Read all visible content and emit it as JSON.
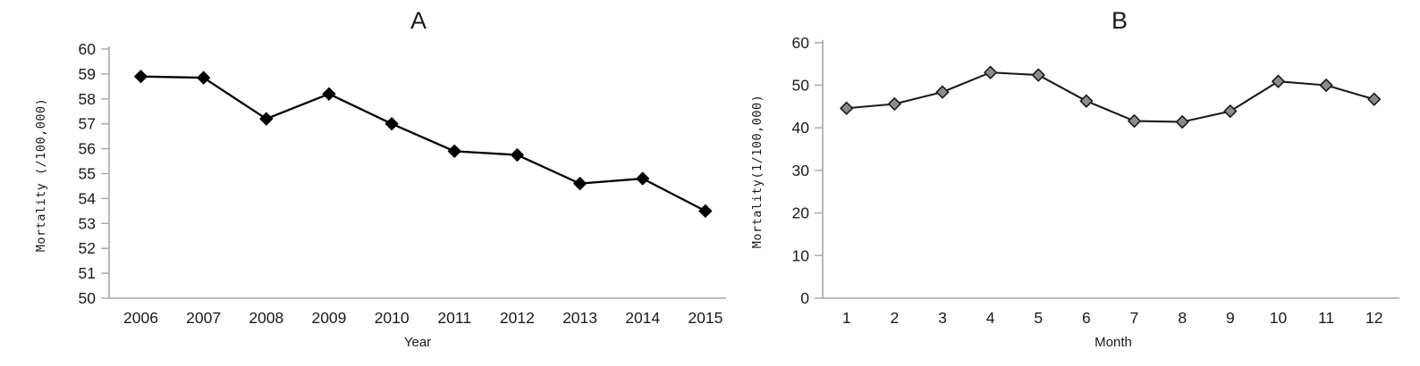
{
  "page": {
    "background": "#ffffff",
    "description": "Two panel line chart figure"
  },
  "colors": {
    "axis_line": "#a6a6a6",
    "text": "#1a1a1a",
    "series_a_line": "#000000",
    "series_a_marker_fill": "#000000",
    "series_b_line": "#1a1a1a",
    "series_b_marker_fill": "#8c8c8c",
    "series_b_marker_stroke": "#1a1a1a"
  },
  "chart_data": [
    {
      "id": "A",
      "type": "line",
      "title": "A",
      "xlabel": "Year",
      "ylabel": "Mortality （/100,000）",
      "categories": [
        "2006",
        "2007",
        "2008",
        "2009",
        "2010",
        "2011",
        "2012",
        "2013",
        "2014",
        "2015"
      ],
      "values": [
        58.9,
        58.85,
        57.2,
        58.2,
        57.0,
        55.9,
        55.75,
        54.6,
        54.8,
        53.5
      ],
      "ylim": [
        50,
        60
      ],
      "yticks": [
        50,
        51,
        52,
        53,
        54,
        55,
        56,
        57,
        58,
        59,
        60
      ],
      "grid": false,
      "legend": "none",
      "marker": "diamond"
    },
    {
      "id": "B",
      "type": "line",
      "title": "B",
      "xlabel": "Month",
      "ylabel": "Mortality(1/100,000)",
      "categories": [
        "1",
        "2",
        "3",
        "4",
        "5",
        "6",
        "7",
        "8",
        "9",
        "10",
        "11",
        "12"
      ],
      "values": [
        44.6,
        45.6,
        48.4,
        53.0,
        52.4,
        46.3,
        41.6,
        41.4,
        43.9,
        50.9,
        50.0,
        46.7
      ],
      "ylim": [
        0,
        60
      ],
      "yticks": [
        0,
        10,
        20,
        30,
        40,
        50,
        60
      ],
      "grid": false,
      "legend": "none",
      "marker": "diamond"
    }
  ]
}
